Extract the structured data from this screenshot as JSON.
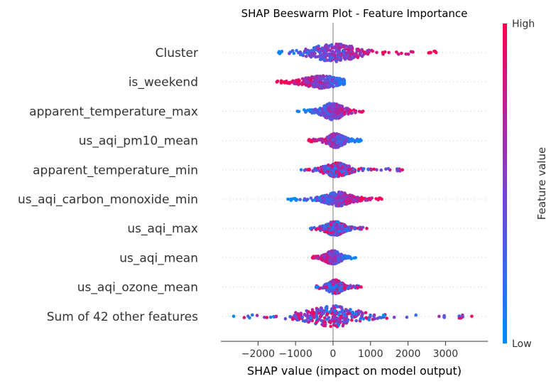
{
  "chart_data": {
    "type": "scatter",
    "subtype": "shap-beeswarm",
    "title": "SHAP Beeswarm Plot - Feature Importance",
    "xlabel": "SHAP value (impact on model output)",
    "xlim": [
      -3000,
      4000
    ],
    "xticks": [
      -2000,
      -1000,
      0,
      1000,
      2000,
      3000
    ],
    "xtick_labels": [
      "−2000",
      "−1000",
      "0",
      "1000",
      "2000",
      "3000"
    ],
    "colorbar": {
      "label": "Feature value",
      "high_label": "High",
      "low_label": "Low",
      "low_color": "#008bfb",
      "mid_color": "#7d3fd0",
      "high_color": "#ff0052"
    },
    "features": [
      {
        "name": "Cluster",
        "min": -1450,
        "max": 2750,
        "core_min": -700,
        "core_max": 800,
        "high_side": "right",
        "max_thickness": 13
      },
      {
        "name": "is_weekend",
        "min": -1500,
        "max": 300,
        "core_min": -900,
        "core_max": 300,
        "high_side": "left",
        "max_thickness": 9
      },
      {
        "name": "apparent_temperature_max",
        "min": -950,
        "max": 800,
        "core_min": -350,
        "core_max": 350,
        "high_side": "right",
        "max_thickness": 12
      },
      {
        "name": "us_aqi_pm10_mean",
        "min": -650,
        "max": 750,
        "core_min": -200,
        "core_max": 350,
        "high_side": "left",
        "max_thickness": 10
      },
      {
        "name": "apparent_temperature_min",
        "min": -850,
        "max": 1850,
        "core_min": -300,
        "core_max": 500,
        "high_side": "mixed",
        "max_thickness": 10
      },
      {
        "name": "us_aqi_carbon_monoxide_min",
        "min": -1200,
        "max": 1300,
        "core_min": -300,
        "core_max": 600,
        "high_side": "right",
        "max_thickness": 10
      },
      {
        "name": "us_aqi_max",
        "min": -600,
        "max": 900,
        "core_min": -250,
        "core_max": 350,
        "high_side": "mixed",
        "max_thickness": 10
      },
      {
        "name": "us_aqi_mean",
        "min": -550,
        "max": 600,
        "core_min": -250,
        "core_max": 250,
        "high_side": "left",
        "max_thickness": 10
      },
      {
        "name": "us_aqi_ozone_mean",
        "min": -450,
        "max": 750,
        "core_min": -200,
        "core_max": 300,
        "high_side": "mixed",
        "max_thickness": 10
      },
      {
        "name": "Sum of 42 other features",
        "min": -2650,
        "max": 3700,
        "core_min": -900,
        "core_max": 900,
        "high_side": "mixed",
        "max_thickness": 15
      }
    ]
  }
}
